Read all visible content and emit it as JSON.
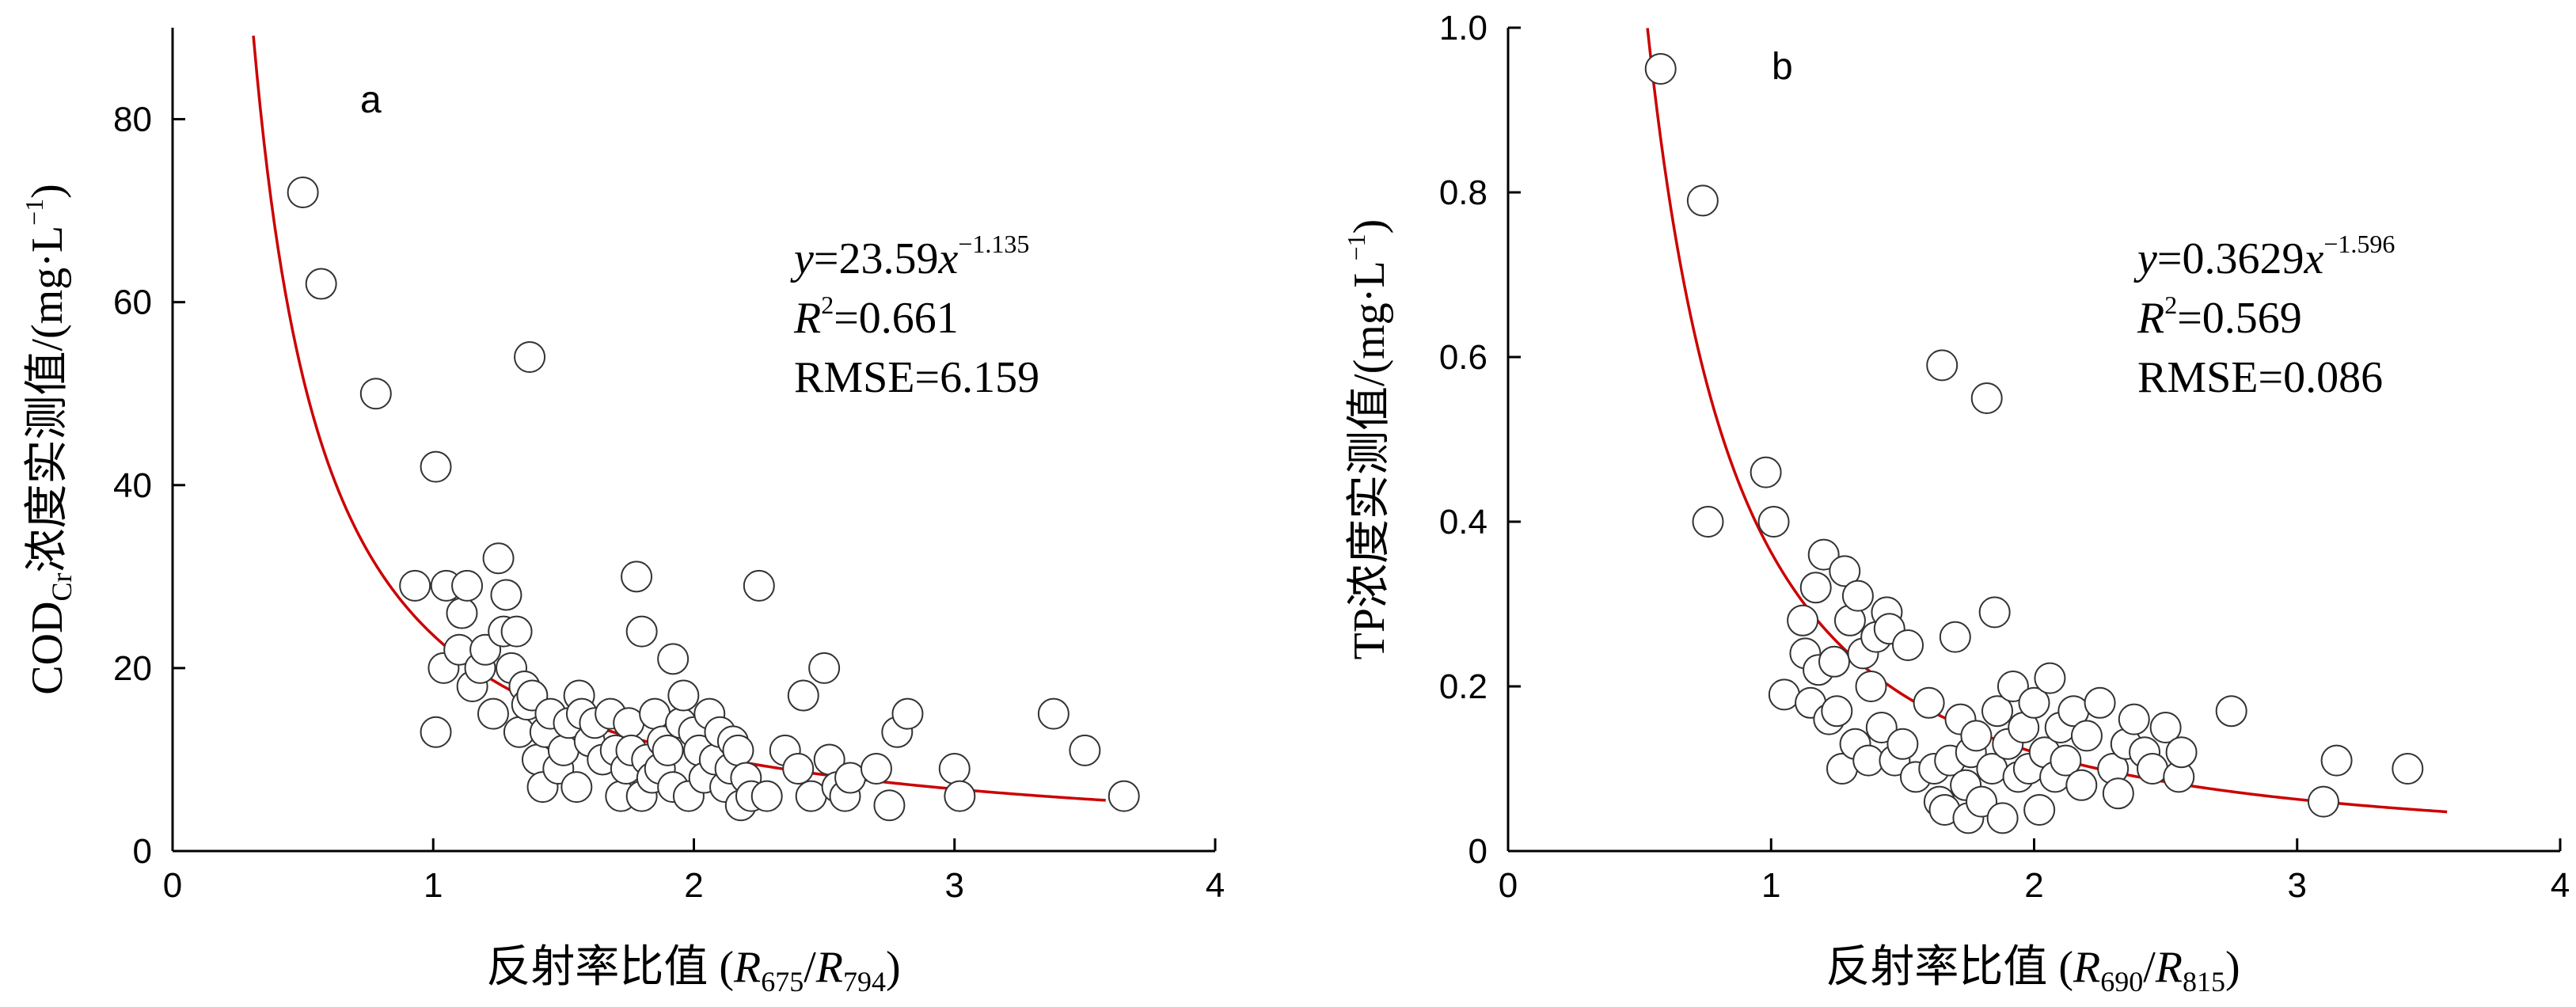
{
  "chart_data": [
    {
      "type": "scatter",
      "panel_label": "a",
      "xlabel": {
        "main": "反射率比值 (",
        "r1": "R",
        "r1_sub": "675",
        "slash": "/",
        "r2": "R",
        "r2_sub": "794",
        "close": ")"
      },
      "ylabel": {
        "p1": "COD",
        "p1_sub": "Cr",
        "p2": "浓度实测值/(mg·L",
        "p2_sup": "−1",
        "p3": ")"
      },
      "xlim": [
        0,
        4
      ],
      "ylim": [
        0,
        90
      ],
      "xticks": [
        "0",
        "1",
        "2",
        "3",
        "4"
      ],
      "yticks": [
        "0",
        "20",
        "40",
        "60",
        "80"
      ],
      "annotation": {
        "eq_y": "y",
        "eq_mid": "=23.59",
        "eq_x": "x",
        "eq_exp": "−1.135",
        "r2_R": "R",
        "r2_sup": "2",
        "r2_val": "=0.661",
        "rmse": "RMSE=6.159"
      },
      "fit": {
        "model": "power",
        "a": 23.59,
        "b": -1.135,
        "x_range": [
          0.31,
          3.58
        ],
        "color": "#cc0000"
      },
      "points": [
        [
          0.5,
          72
        ],
        [
          0.57,
          62
        ],
        [
          0.78,
          50
        ],
        [
          1.01,
          42
        ],
        [
          1.37,
          54
        ],
        [
          0.93,
          29
        ],
        [
          1.01,
          13
        ],
        [
          1.04,
          20
        ],
        [
          1.05,
          29
        ],
        [
          1.1,
          22
        ],
        [
          1.11,
          26
        ],
        [
          1.13,
          29
        ],
        [
          1.15,
          18
        ],
        [
          1.18,
          20
        ],
        [
          1.2,
          22
        ],
        [
          1.23,
          15
        ],
        [
          1.25,
          32
        ],
        [
          1.27,
          24
        ],
        [
          1.28,
          28
        ],
        [
          1.3,
          20
        ],
        [
          1.32,
          24
        ],
        [
          1.33,
          13
        ],
        [
          1.35,
          18
        ],
        [
          1.36,
          16
        ],
        [
          1.38,
          17
        ],
        [
          1.4,
          10
        ],
        [
          1.42,
          7
        ],
        [
          1.43,
          13
        ],
        [
          1.45,
          15
        ],
        [
          1.48,
          9
        ],
        [
          1.5,
          11
        ],
        [
          1.52,
          14
        ],
        [
          1.55,
          7
        ],
        [
          1.56,
          17
        ],
        [
          1.57,
          15
        ],
        [
          1.6,
          12
        ],
        [
          1.62,
          14
        ],
        [
          1.65,
          10
        ],
        [
          1.68,
          15
        ],
        [
          1.7,
          11
        ],
        [
          1.72,
          6
        ],
        [
          1.74,
          9
        ],
        [
          1.75,
          14
        ],
        [
          1.76,
          11
        ],
        [
          1.78,
          30
        ],
        [
          1.8,
          24
        ],
        [
          1.8,
          6
        ],
        [
          1.82,
          10
        ],
        [
          1.84,
          8
        ],
        [
          1.85,
          15
        ],
        [
          1.87,
          9
        ],
        [
          1.88,
          12
        ],
        [
          1.9,
          11
        ],
        [
          1.92,
          7
        ],
        [
          1.92,
          21
        ],
        [
          1.95,
          14
        ],
        [
          1.96,
          17
        ],
        [
          1.98,
          6
        ],
        [
          2.0,
          13
        ],
        [
          2.02,
          11
        ],
        [
          2.04,
          8
        ],
        [
          2.06,
          15
        ],
        [
          2.08,
          10
        ],
        [
          2.1,
          13
        ],
        [
          2.12,
          7
        ],
        [
          2.14,
          9
        ],
        [
          2.15,
          12
        ],
        [
          2.17,
          11
        ],
        [
          2.18,
          5
        ],
        [
          2.2,
          8
        ],
        [
          2.22,
          6
        ],
        [
          2.25,
          29
        ],
        [
          2.28,
          6
        ],
        [
          2.35,
          11
        ],
        [
          2.4,
          9
        ],
        [
          2.42,
          17
        ],
        [
          2.45,
          6
        ],
        [
          2.5,
          20
        ],
        [
          2.52,
          10
        ],
        [
          2.55,
          7
        ],
        [
          2.58,
          6
        ],
        [
          2.6,
          8
        ],
        [
          2.7,
          9
        ],
        [
          2.75,
          5
        ],
        [
          2.78,
          13
        ],
        [
          2.82,
          15
        ],
        [
          3.0,
          9
        ],
        [
          3.02,
          6
        ],
        [
          3.38,
          15
        ],
        [
          3.5,
          11
        ],
        [
          3.65,
          6
        ]
      ]
    },
    {
      "type": "scatter",
      "panel_label": "b",
      "xlabel": {
        "main": "反射率比值 (",
        "r1": "R",
        "r1_sub": "690",
        "slash": "/",
        "r2": "R",
        "r2_sub": "815",
        "close": ")"
      },
      "ylabel": {
        "p1": "TP浓度实测值/(mg·L",
        "p1_sub": "",
        "p2": "",
        "p2_sup": "−1",
        "p3": ")"
      },
      "xlim": [
        0,
        4
      ],
      "ylim": [
        0,
        1.0
      ],
      "xticks": [
        "0",
        "1",
        "2",
        "3",
        "4"
      ],
      "yticks": [
        "0",
        "0.2",
        "0.4",
        "0.6",
        "0.8",
        "1.0"
      ],
      "annotation": {
        "eq_y": "y",
        "eq_mid": "=0.3629",
        "eq_x": "x",
        "eq_exp": "−1.596",
        "r2_R": "R",
        "r2_sup": "2",
        "r2_val": "=0.569",
        "rmse": "RMSE=0.086"
      },
      "fit": {
        "model": "power",
        "a": 0.3629,
        "b": -1.596,
        "x_range": [
          0.53,
          3.57
        ],
        "color": "#cc0000"
      },
      "points": [
        [
          0.58,
          0.95
        ],
        [
          0.74,
          0.79
        ],
        [
          0.76,
          0.4
        ],
        [
          0.98,
          0.46
        ],
        [
          1.01,
          0.4
        ],
        [
          1.05,
          0.19
        ],
        [
          1.12,
          0.28
        ],
        [
          1.13,
          0.24
        ],
        [
          1.15,
          0.18
        ],
        [
          1.17,
          0.32
        ],
        [
          1.18,
          0.22
        ],
        [
          1.2,
          0.36
        ],
        [
          1.22,
          0.16
        ],
        [
          1.24,
          0.23
        ],
        [
          1.25,
          0.17
        ],
        [
          1.27,
          0.1
        ],
        [
          1.28,
          0.34
        ],
        [
          1.3,
          0.28
        ],
        [
          1.32,
          0.13
        ],
        [
          1.33,
          0.31
        ],
        [
          1.35,
          0.24
        ],
        [
          1.37,
          0.11
        ],
        [
          1.38,
          0.2
        ],
        [
          1.4,
          0.26
        ],
        [
          1.42,
          0.15
        ],
        [
          1.44,
          0.29
        ],
        [
          1.45,
          0.27
        ],
        [
          1.47,
          0.11
        ],
        [
          1.5,
          0.13
        ],
        [
          1.52,
          0.25
        ],
        [
          1.55,
          0.09
        ],
        [
          1.6,
          0.18
        ],
        [
          1.62,
          0.1
        ],
        [
          1.64,
          0.06
        ],
        [
          1.65,
          0.59
        ],
        [
          1.66,
          0.05
        ],
        [
          1.68,
          0.11
        ],
        [
          1.7,
          0.26
        ],
        [
          1.72,
          0.16
        ],
        [
          1.74,
          0.08
        ],
        [
          1.75,
          0.04
        ],
        [
          1.76,
          0.12
        ],
        [
          1.78,
          0.14
        ],
        [
          1.8,
          0.06
        ],
        [
          1.82,
          0.55
        ],
        [
          1.84,
          0.1
        ],
        [
          1.85,
          0.29
        ],
        [
          1.86,
          0.17
        ],
        [
          1.88,
          0.04
        ],
        [
          1.9,
          0.13
        ],
        [
          1.92,
          0.2
        ],
        [
          1.94,
          0.09
        ],
        [
          1.96,
          0.15
        ],
        [
          1.98,
          0.1
        ],
        [
          2.0,
          0.18
        ],
        [
          2.02,
          0.05
        ],
        [
          2.04,
          0.12
        ],
        [
          2.06,
          0.21
        ],
        [
          2.08,
          0.09
        ],
        [
          2.1,
          0.15
        ],
        [
          2.12,
          0.11
        ],
        [
          2.15,
          0.17
        ],
        [
          2.18,
          0.08
        ],
        [
          2.2,
          0.14
        ],
        [
          2.25,
          0.18
        ],
        [
          2.3,
          0.1
        ],
        [
          2.32,
          0.07
        ],
        [
          2.35,
          0.13
        ],
        [
          2.38,
          0.16
        ],
        [
          2.42,
          0.12
        ],
        [
          2.45,
          0.1
        ],
        [
          2.5,
          0.15
        ],
        [
          2.55,
          0.09
        ],
        [
          2.56,
          0.12
        ],
        [
          2.75,
          0.17
        ],
        [
          3.1,
          0.06
        ],
        [
          3.15,
          0.11
        ],
        [
          3.42,
          0.1
        ]
      ]
    }
  ]
}
